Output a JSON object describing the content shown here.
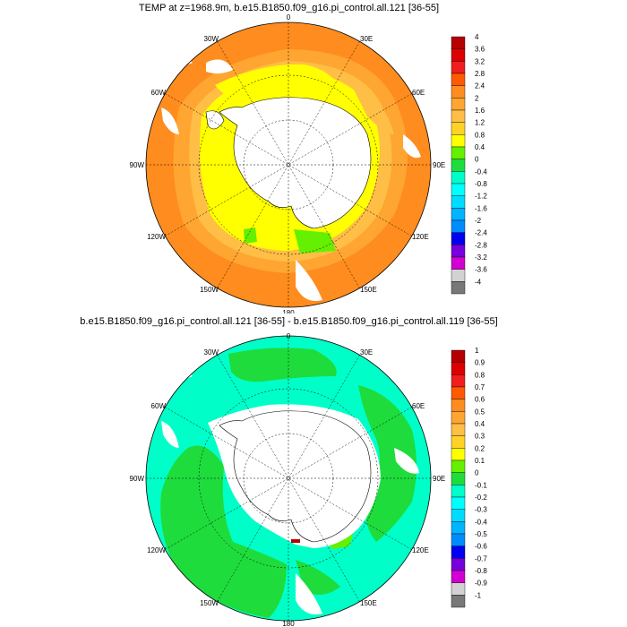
{
  "panels": [
    {
      "title": "TEMP at z=1968.9m, b.e15.B1850.f09_g16.pi_control.all.121 [36-55]",
      "colorbar": {
        "labels": [
          "4",
          "3.6",
          "3.2",
          "2.8",
          "2.4",
          "2",
          "1.6",
          "1.2",
          "0.8",
          "0.4",
          "0",
          "-0.4",
          "-0.8",
          "-1.2",
          "-1.6",
          "-2",
          "-2.4",
          "-2.8",
          "-3.2",
          "-3.6",
          "-4"
        ],
        "colors": [
          "#b40000",
          "#dc0000",
          "#f01e1e",
          "#ff5a00",
          "#ff8c1e",
          "#ffa532",
          "#ffbe46",
          "#ffd228",
          "#ffff00",
          "#64f000",
          "#1edc3c",
          "#00ffc8",
          "#00ffff",
          "#00dcff",
          "#00b4ff",
          "#008cff",
          "#0000f0",
          "#7800dc",
          "#d200d2",
          "#d2d2d2",
          "#787878"
        ]
      }
    },
    {
      "title": "b.e15.B1850.f09_g16.pi_control.all.121 [36-55] - b.e15.B1850.f09_g16.pi_control.all.119 [36-55]",
      "colorbar": {
        "labels": [
          "1",
          "0.9",
          "0.8",
          "0.7",
          "0.6",
          "0.5",
          "0.4",
          "0.3",
          "0.2",
          "0.1",
          "0",
          "-0.1",
          "-0.2",
          "-0.3",
          "-0.4",
          "-0.5",
          "-0.6",
          "-0.7",
          "-0.8",
          "-0.9",
          "-1"
        ],
        "colors": [
          "#b40000",
          "#dc0000",
          "#f01e1e",
          "#ff5a00",
          "#ff8c1e",
          "#ffa532",
          "#ffbe46",
          "#ffd228",
          "#ffff00",
          "#64f000",
          "#1edc3c",
          "#00ffc8",
          "#00ffff",
          "#00dcff",
          "#00b4ff",
          "#008cff",
          "#0000f0",
          "#7800dc",
          "#d200d2",
          "#d2d2d2",
          "#787878"
        ]
      }
    }
  ],
  "lon_labels": [
    "0",
    "30E",
    "60E",
    "90E",
    "120E",
    "150E",
    "180",
    "150W",
    "120W",
    "90W",
    "60W",
    "30W"
  ],
  "colors": {
    "land": "#ffffff",
    "orange": "#ff8c1e",
    "light_orange": "#ffa532",
    "gold": "#ffbe46",
    "yellow": "#ffff00",
    "green": "#64f000",
    "cyan": "#00ffc8",
    "green_diff": "#1edc3c"
  }
}
